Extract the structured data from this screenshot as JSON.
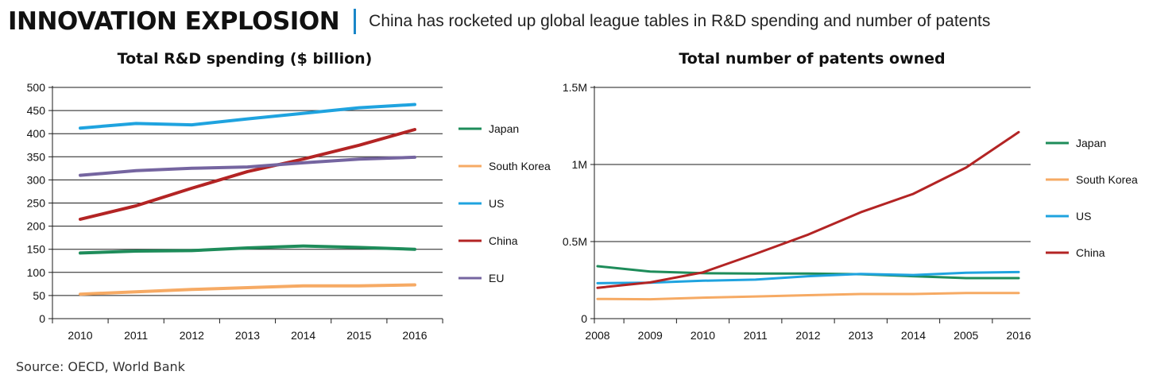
{
  "header": {
    "headline": "INNOVATION EXPLOSION",
    "subhead": "China has rocketed up global league tables in R&D spending and number of patents"
  },
  "source": "Source: OECD, World Bank",
  "colors": {
    "Japan": "#1e8c5a",
    "South Korea": "#f6aa64",
    "US": "#1fa3df",
    "China": "#b32424",
    "EU": "#7565a0",
    "divider": "#1a87c8"
  },
  "chart_data": [
    {
      "type": "line",
      "title": "Total R&D spending ($ billion)",
      "xlabel": "",
      "ylabel": "",
      "x": [
        "2010",
        "2011",
        "2012",
        "2013",
        "2014",
        "2015",
        "2016"
      ],
      "ylim": [
        0,
        500
      ],
      "yticks": [
        0,
        50,
        100,
        150,
        200,
        250,
        300,
        350,
        400,
        450,
        500
      ],
      "ytick_labels": [
        "0",
        "50",
        "100",
        "150",
        "200",
        "250",
        "300",
        "350",
        "400",
        "450",
        "500"
      ],
      "grid": true,
      "legend_position": "right",
      "series": [
        {
          "name": "Japan",
          "values": [
            142,
            146,
            147,
            153,
            157,
            154,
            150
          ]
        },
        {
          "name": "South Korea",
          "values": [
            53,
            58,
            63,
            67,
            71,
            71,
            73
          ]
        },
        {
          "name": "US",
          "values": [
            412,
            422,
            419,
            432,
            444,
            456,
            463
          ]
        },
        {
          "name": "China",
          "values": [
            215,
            244,
            282,
            318,
            345,
            375,
            409
          ]
        },
        {
          "name": "EU",
          "values": [
            310,
            320,
            325,
            328,
            337,
            345,
            349
          ]
        }
      ]
    },
    {
      "type": "line",
      "title": "Total number of patents owned",
      "xlabel": "",
      "ylabel": "",
      "x": [
        "2008",
        "2009",
        "2010",
        "2011",
        "2012",
        "2013",
        "2014",
        "2005",
        "2016"
      ],
      "ylim": [
        0,
        1500000
      ],
      "yticks": [
        0,
        500000,
        1000000,
        1500000
      ],
      "ytick_labels": [
        "0",
        "0.5M",
        "1M",
        "1.5M"
      ],
      "grid": true,
      "legend_position": "right",
      "series": [
        {
          "name": "Japan",
          "values": [
            340000,
            305000,
            295000,
            293000,
            293000,
            288000,
            275000,
            263000,
            263000
          ]
        },
        {
          "name": "South Korea",
          "values": [
            128000,
            126000,
            136000,
            144000,
            152000,
            160000,
            160000,
            166000,
            166000
          ]
        },
        {
          "name": "US",
          "values": [
            230000,
            233000,
            246000,
            253000,
            275000,
            290000,
            283000,
            298000,
            302000
          ]
        },
        {
          "name": "China",
          "values": [
            200000,
            235000,
            300000,
            420000,
            545000,
            690000,
            810000,
            980000,
            1210000
          ]
        }
      ]
    }
  ]
}
